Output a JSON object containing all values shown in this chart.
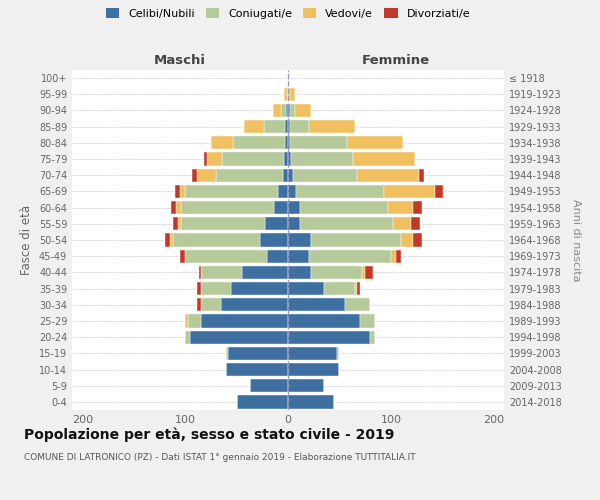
{
  "age_groups": [
    "100+",
    "95-99",
    "90-94",
    "85-89",
    "80-84",
    "75-79",
    "70-74",
    "65-69",
    "60-64",
    "55-59",
    "50-54",
    "45-49",
    "40-44",
    "35-39",
    "30-34",
    "25-29",
    "20-24",
    "15-19",
    "10-14",
    "5-9",
    "0-4"
  ],
  "birth_years": [
    "≤ 1918",
    "1919-1923",
    "1924-1928",
    "1929-1933",
    "1934-1938",
    "1939-1943",
    "1944-1948",
    "1949-1953",
    "1954-1958",
    "1959-1963",
    "1964-1968",
    "1969-1973",
    "1974-1978",
    "1979-1983",
    "1984-1988",
    "1989-1993",
    "1994-1998",
    "1999-2003",
    "2004-2008",
    "2009-2013",
    "2014-2018"
  ],
  "colors": {
    "celibi_nubili": "#3d6fa0",
    "coniugati": "#b5c99a",
    "vedovi": "#f0c060",
    "divorziati": "#c0392b"
  },
  "males_celibi": [
    0,
    0,
    2,
    3,
    3,
    4,
    5,
    10,
    14,
    22,
    27,
    20,
    45,
    55,
    65,
    85,
    95,
    58,
    60,
    37,
    50
  ],
  "males_coniugati": [
    0,
    1,
    5,
    20,
    50,
    60,
    65,
    90,
    90,
    82,
    85,
    80,
    40,
    30,
    20,
    12,
    5,
    2,
    0,
    0,
    0
  ],
  "males_vedovi": [
    0,
    3,
    8,
    20,
    22,
    15,
    18,
    5,
    5,
    3,
    3,
    0,
    0,
    0,
    0,
    3,
    0,
    0,
    0,
    0,
    0
  ],
  "males_divorziati": [
    0,
    0,
    0,
    0,
    0,
    3,
    5,
    5,
    5,
    5,
    5,
    5,
    2,
    3,
    3,
    0,
    0,
    0,
    0,
    0,
    0
  ],
  "females_nubili": [
    0,
    0,
    2,
    2,
    2,
    3,
    5,
    8,
    12,
    12,
    22,
    20,
    22,
    35,
    55,
    70,
    80,
    48,
    50,
    35,
    45
  ],
  "females_coniugate": [
    0,
    2,
    5,
    18,
    55,
    60,
    62,
    85,
    85,
    90,
    88,
    80,
    50,
    30,
    25,
    15,
    5,
    2,
    0,
    0,
    0
  ],
  "females_vedove": [
    1,
    5,
    15,
    45,
    55,
    60,
    60,
    50,
    25,
    18,
    12,
    5,
    3,
    2,
    0,
    0,
    0,
    0,
    0,
    0,
    0
  ],
  "females_divorziate": [
    0,
    0,
    0,
    0,
    0,
    0,
    5,
    8,
    8,
    8,
    8,
    5,
    8,
    3,
    0,
    0,
    0,
    0,
    0,
    0,
    0
  ],
  "xlim": [
    -210,
    210
  ],
  "xticks": [
    -200,
    -100,
    0,
    100,
    200
  ],
  "xticklabels": [
    "200",
    "100",
    "0",
    "100",
    "200"
  ],
  "title": "Popolazione per età, sesso e stato civile - 2019",
  "subtitle": "COMUNE DI LATRONICO (PZ) - Dati ISTAT 1° gennaio 2019 - Elaborazione TUTTITALIA.IT",
  "ylabel": "Fasce di età",
  "ylabel_right": "Anni di nascita",
  "background_color": "#f0f0f0",
  "plot_bg": "#ffffff",
  "legend_labels": [
    "Celibi/Nubili",
    "Coniugati/e",
    "Vedovi/e",
    "Divorziati/e"
  ]
}
